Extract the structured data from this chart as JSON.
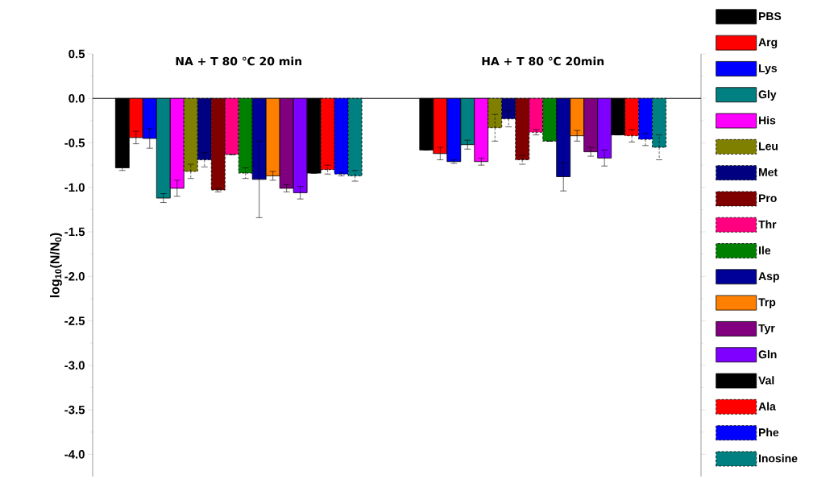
{
  "chart_data": {
    "type": "bar",
    "ylabel": "log$_{10}$(N/N$_{0}$)",
    "categories": [
      "NA + T 80 ℃ 20 min",
      "HA + T 80 ℃ 20min"
    ],
    "ylim": [
      -4.25,
      0.5
    ],
    "yticks": [
      0.5,
      {
        "value": 0,
        "label": "0.0"
      },
      -0.5,
      {
        "value": -1,
        "label": "-1.0"
      },
      -1.5,
      {
        "value": -2,
        "label": "-2.0"
      },
      -2.5,
      {
        "value": -3,
        "label": "-3.0"
      },
      -3.5,
      {
        "value": -4,
        "label": "-4.0"
      }
    ],
    "legend": "right",
    "grid": false,
    "ref_lines": [
      {
        "axis": "y",
        "value": 0
      }
    ],
    "series": [
      {
        "name": "PBS",
        "color": "#000000",
        "values": [
          -0.78,
          -0.58
        ],
        "errors": [
          0.03,
          null
        ]
      },
      {
        "name": "Arg",
        "color": "#ff0000",
        "values": [
          -0.44,
          -0.62
        ],
        "errors": [
          0.07,
          0.07
        ]
      },
      {
        "name": "Lys",
        "color": "#0000ff",
        "values": [
          -0.45,
          -0.71
        ],
        "errors": [
          0.11,
          0.02
        ]
      },
      {
        "name": "Gly",
        "color": "#008080",
        "values": [
          -1.12,
          -0.52
        ],
        "errors": [
          0.05,
          0.05
        ]
      },
      {
        "name": "His",
        "color": "#ff00ff",
        "values": [
          -1.01,
          -0.71
        ],
        "errors": [
          0.09,
          0.04
        ]
      },
      {
        "name": "Leu",
        "color": "#808000",
        "values": [
          -0.82,
          -0.33
        ],
        "errors": [
          0.08,
          0.15
        ]
      },
      {
        "name": "Met",
        "color": "#000080",
        "values": [
          -0.69,
          -0.23
        ],
        "errors": [
          0.08,
          0.09
        ]
      },
      {
        "name": "Pro",
        "color": "#800000",
        "values": [
          -1.03,
          -0.69
        ],
        "errors": [
          0.02,
          0.05
        ]
      },
      {
        "name": "Thr",
        "color": "#ff0080",
        "values": [
          -0.63,
          -0.38
        ],
        "errors": [
          null,
          0.03
        ]
      },
      {
        "name": "Ile",
        "color": "#008000",
        "values": [
          -0.84,
          -0.48
        ],
        "errors": [
          0.06,
          null
        ]
      },
      {
        "name": "Asp",
        "color": "#000099",
        "values": [
          -0.91,
          -0.88
        ],
        "errors": [
          0.43,
          0.16
        ]
      },
      {
        "name": "Trp",
        "color": "#ff8000",
        "values": [
          -0.87,
          -0.42
        ],
        "errors": [
          0.05,
          0.06
        ]
      },
      {
        "name": "Tyr",
        "color": "#800080",
        "values": [
          -1.01,
          -0.6
        ],
        "errors": [
          0.04,
          0.05
        ]
      },
      {
        "name": "Gln",
        "color": "#8000ff",
        "values": [
          -1.06,
          -0.67
        ],
        "errors": [
          0.07,
          0.09
        ]
      },
      {
        "name": "Val",
        "color": "#000000",
        "values": [
          -0.84,
          -0.41
        ],
        "errors": [
          null,
          null
        ]
      },
      {
        "name": "Ala",
        "color": "#ff0000",
        "values": [
          -0.8,
          -0.42
        ],
        "errors": [
          0.05,
          0.07
        ]
      },
      {
        "name": "Phe",
        "color": "#0000ff",
        "values": [
          -0.85,
          -0.46
        ],
        "errors": [
          0.02,
          0.07
        ]
      },
      {
        "name": "Inosine",
        "color": "#008080",
        "values": [
          -0.87,
          -0.55
        ],
        "errors": [
          0.06,
          0.14
        ]
      }
    ]
  }
}
